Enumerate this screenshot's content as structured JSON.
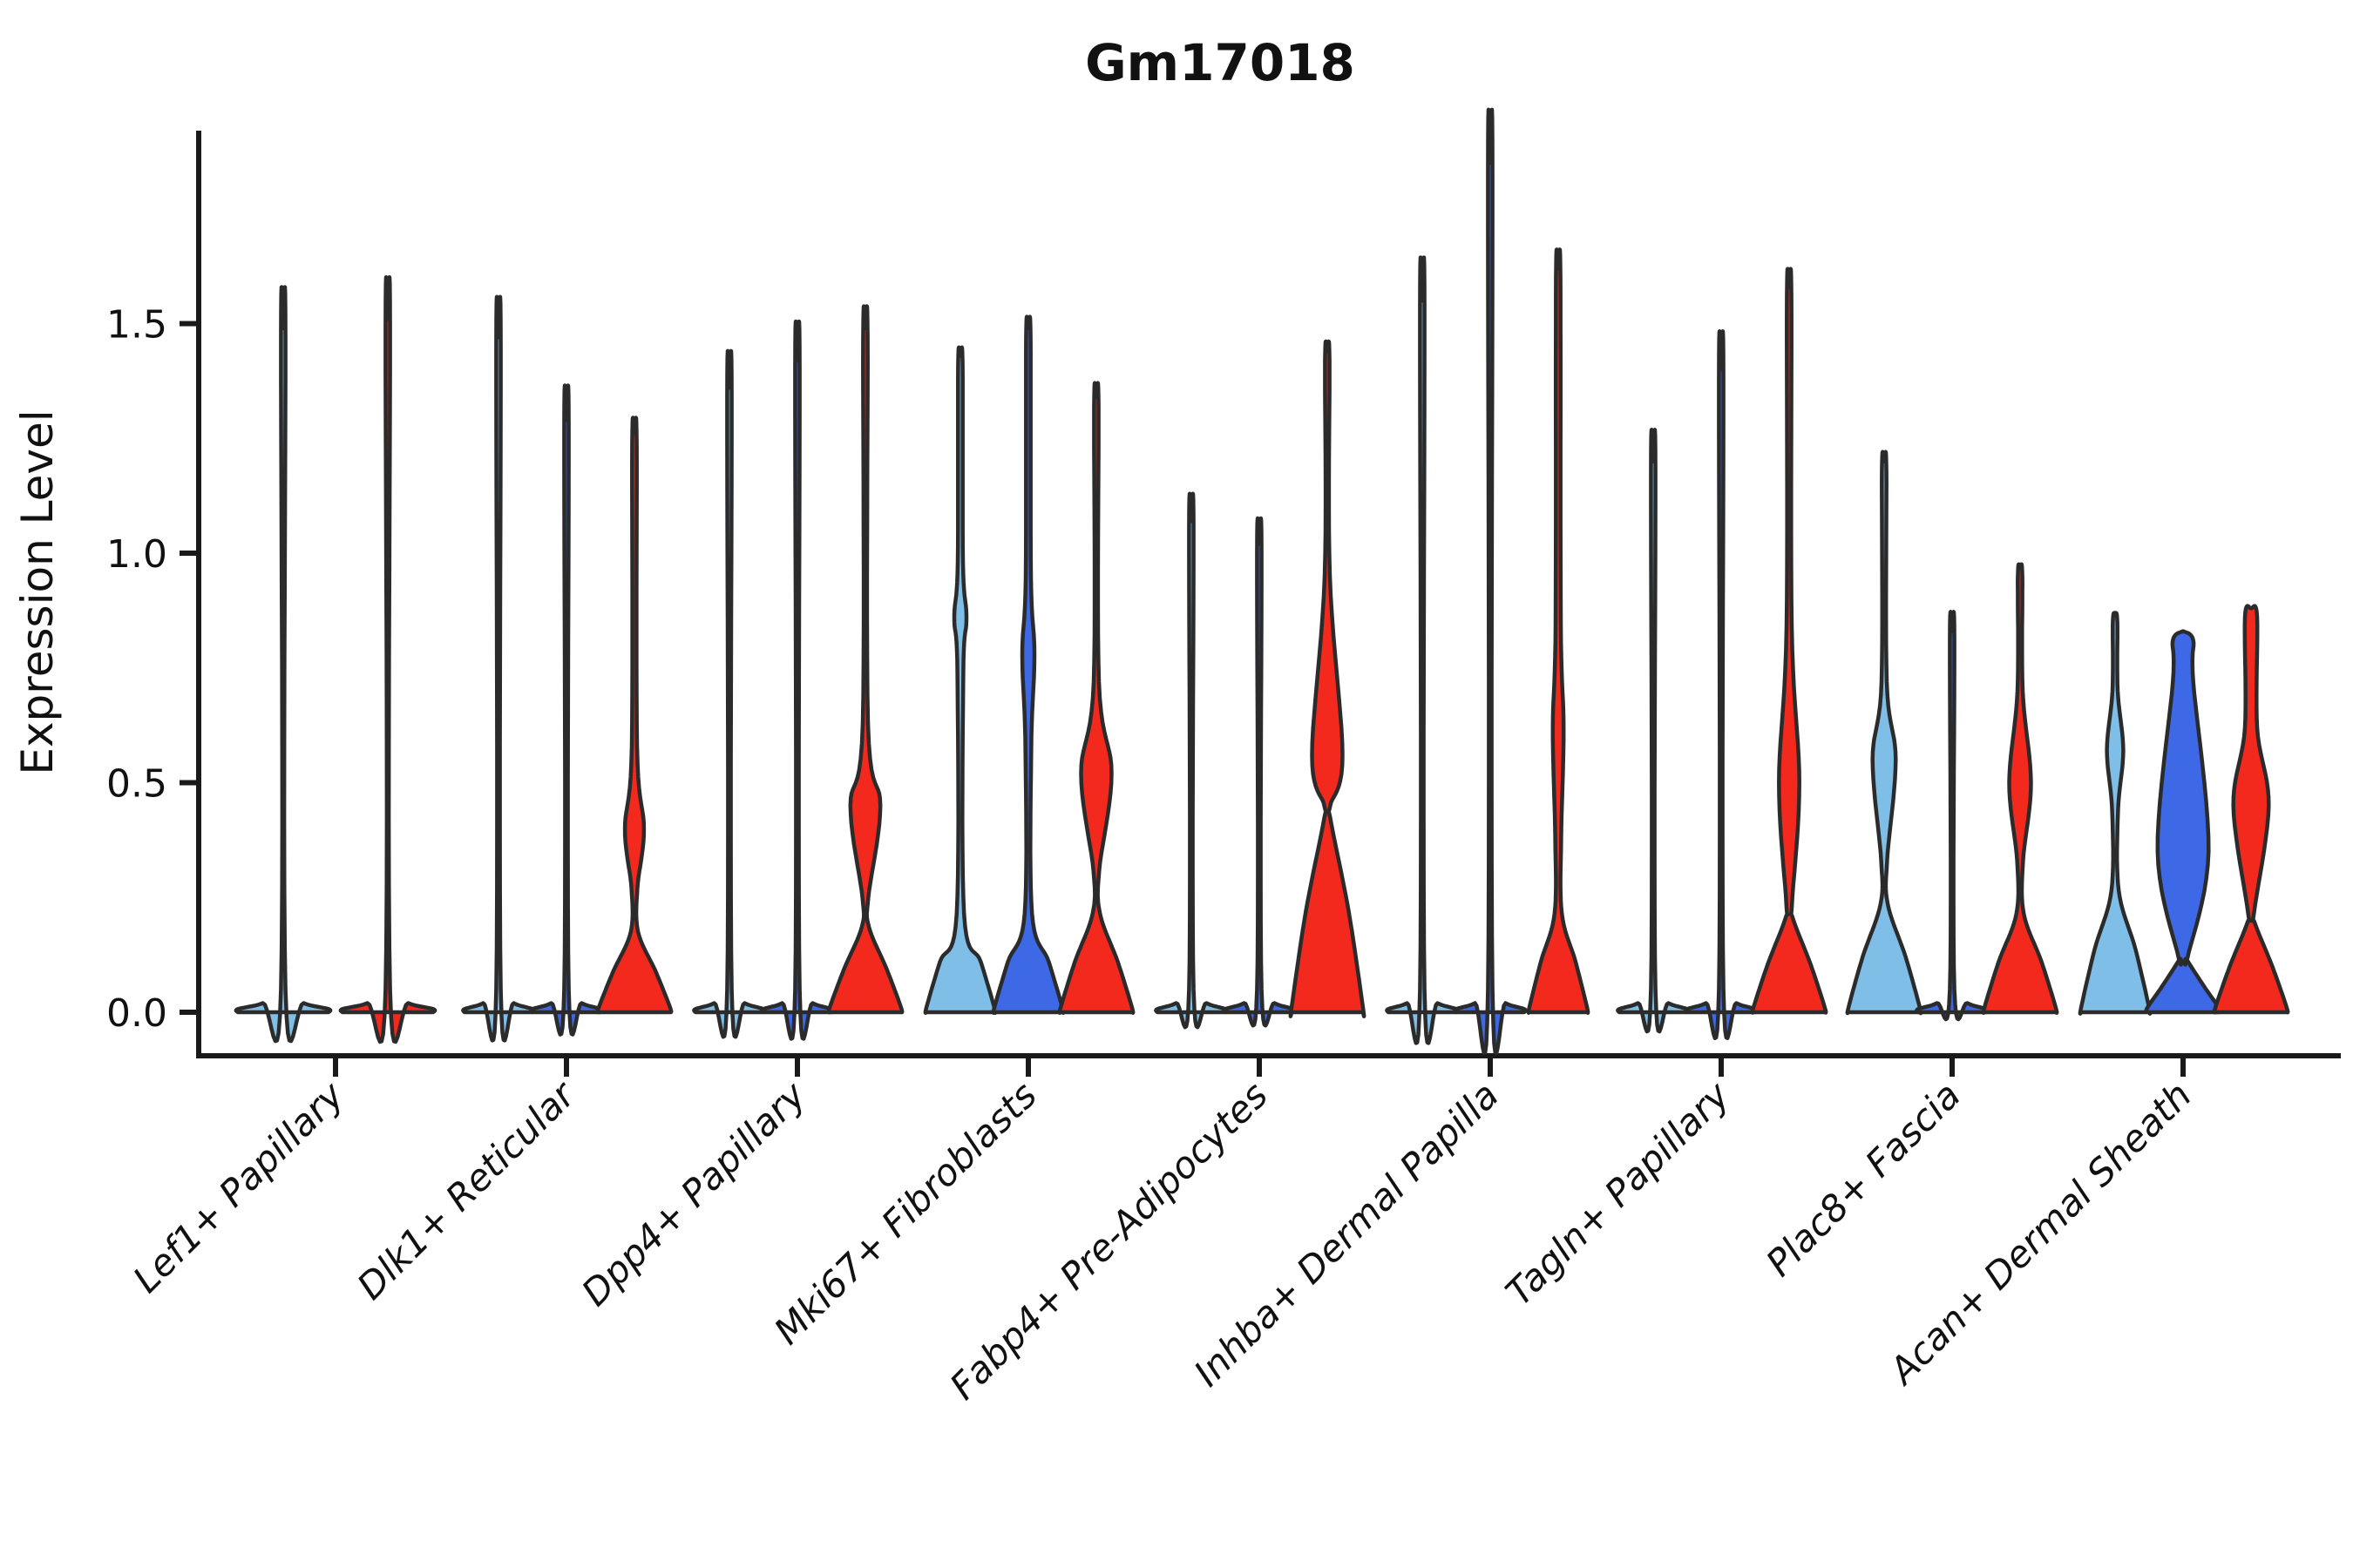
{
  "figure": {
    "title": "Gm17018",
    "y_axis_label": "Expression Level"
  },
  "chart_data": {
    "type": "violin",
    "title": "Gm17018",
    "xlabel": "",
    "ylabel": "Expression Level",
    "ylim": [
      0,
      1.92
    ],
    "y_ticks": [
      0.0,
      0.5,
      1.0,
      1.5
    ],
    "y_tick_labels": [
      "0.0",
      "0.5",
      "1.0",
      "1.5"
    ],
    "grid": false,
    "legend_position": "none",
    "x_tick_rotation_deg": 45,
    "categories": [
      "Lef1+ Papillary",
      "Dlk1+ Reticular",
      "Dpp4+ Papillary",
      "Mki67+ Fibroblasts",
      "Fabp4+ Pre-Adipocytes",
      "Inhba+ Dermal Papilla",
      "Tagln+ Papillary",
      "Plac8+ Fascia",
      "Acan+ Dermal Sheath"
    ],
    "split_colors": {
      "light_blue": "#7FBFE7",
      "dark_blue": "#3E69E6",
      "red": "#F4291D"
    },
    "outline_color": "#2B2B2B",
    "spine_color": "#1A1A1A",
    "groups": [
      {
        "category": "Lef1+ Papillary",
        "violins": [
          {
            "color": "light_blue",
            "max": 1.49,
            "bulge": null,
            "base": null
          },
          {
            "color": "red",
            "max": 1.51,
            "bulge": null,
            "base": null
          }
        ]
      },
      {
        "category": "Dlk1+ Reticular",
        "violins": [
          {
            "color": "light_blue",
            "max": 1.47,
            "bulge": null,
            "base": null
          },
          {
            "color": "dark_blue",
            "max": 1.29,
            "bulge": null,
            "base": null
          },
          {
            "color": "red",
            "max": 1.26,
            "bulge": {
              "lo": 0.27,
              "hi": 0.58,
              "peak": 0.4,
              "rel": 0.28
            },
            "base": {
              "top": 0.16,
              "rel": 1.05
            }
          }
        ]
      },
      {
        "category": "Dpp4+ Papillary",
        "violins": [
          {
            "color": "light_blue",
            "max": 1.36,
            "bulge": null,
            "base": null
          },
          {
            "color": "dark_blue",
            "max": 1.42,
            "bulge": null,
            "base": null
          },
          {
            "color": "red",
            "max": 1.49,
            "bulge": {
              "lo": 0.25,
              "hi": 0.63,
              "peak": 0.45,
              "rel": 0.44
            },
            "base": {
              "top": 0.17,
              "rel": 1.05
            }
          }
        ]
      },
      {
        "category": "Mki67+ Fibroblasts",
        "violins": [
          {
            "color": "light_blue",
            "max": 1.43,
            "bulge": {
              "lo": 0.74,
              "hi": 0.98,
              "peak": 0.86,
              "rel": 0.18
            },
            "base": {
              "top": 0.2,
              "rel": 1.0
            }
          },
          {
            "color": "dark_blue",
            "max": 1.49,
            "bulge": {
              "lo": 0.58,
              "hi": 0.95,
              "peak": 0.78,
              "rel": 0.18
            },
            "base": {
              "top": 0.2,
              "rel": 1.0
            }
          },
          {
            "color": "red",
            "max": 1.34,
            "bulge": {
              "lo": 0.31,
              "hi": 0.72,
              "peak": 0.52,
              "rel": 0.45
            },
            "base": {
              "top": 0.2,
              "rel": 1.05
            }
          }
        ]
      },
      {
        "category": "Fabp4+ Pre-Adipocytes",
        "violins": [
          {
            "color": "light_blue",
            "max": 1.07,
            "bulge": null,
            "base": null
          },
          {
            "color": "dark_blue",
            "max": 1.02,
            "bulge": null,
            "base": null
          },
          {
            "color": "red",
            "max": 1.44,
            "bulge": {
              "lo": 0.45,
              "hi": 0.95,
              "peak": 0.56,
              "rel": 0.45
            },
            "base": {
              "top": 0.4,
              "rel": 1.05
            }
          }
        ]
      },
      {
        "category": "Inhba+ Dermal Papilla",
        "violins": [
          {
            "color": "light_blue",
            "max": 1.55,
            "bulge": null,
            "base": null
          },
          {
            "color": "dark_blue",
            "max": 1.85,
            "bulge": null,
            "base": null
          },
          {
            "color": "red",
            "max": 1.62,
            "bulge": {
              "lo": 0.38,
              "hi": 0.85,
              "peak": 0.62,
              "rel": 0.16
            },
            "base": {
              "top": 0.2,
              "rel": 0.85
            }
          }
        ]
      },
      {
        "category": "Tagln+ Papillary",
        "violins": [
          {
            "color": "light_blue",
            "max": 1.2,
            "bulge": null,
            "base": null
          },
          {
            "color": "dark_blue",
            "max": 1.4,
            "bulge": null,
            "base": null
          },
          {
            "color": "red",
            "max": 1.58,
            "bulge": {
              "lo": 0.24,
              "hi": 0.84,
              "peak": 0.5,
              "rel": 0.3
            },
            "base": {
              "top": 0.19,
              "rel": 1.05
            }
          }
        ]
      },
      {
        "category": "Plac8+ Fascia",
        "violins": [
          {
            "color": "light_blue",
            "max": 1.2,
            "bulge": {
              "lo": 0.33,
              "hi": 0.72,
              "peak": 0.55,
              "rel": 0.34
            },
            "base": {
              "top": 0.22,
              "rel": 1.05
            }
          },
          {
            "color": "dark_blue",
            "max": 0.83,
            "bulge": null,
            "base": null
          },
          {
            "color": "red",
            "max": 0.97,
            "bulge": {
              "lo": 0.33,
              "hi": 0.7,
              "peak": 0.5,
              "rel": 0.32
            },
            "base": {
              "top": 0.2,
              "rel": 1.05
            }
          }
        ]
      },
      {
        "category": "Acan+ Dermal Sheath",
        "violins": [
          {
            "color": "light_blue",
            "max": 0.87,
            "bulge": {
              "lo": 0.44,
              "hi": 0.7,
              "peak": 0.57,
              "rel": 0.24
            },
            "base": {
              "top": 0.25,
              "rel": 1.0
            }
          },
          {
            "color": "dark_blue",
            "max": 0.83,
            "bulge": {
              "lo": 0.12,
              "hi": 0.72,
              "peak": 0.35,
              "rel": 0.75
            },
            "base": {
              "top": 0.1,
              "rel": 1.05
            },
            "neck": 0.3
          },
          {
            "color": "red",
            "max": 0.88,
            "bulge": {
              "lo": 0.22,
              "hi": 0.62,
              "peak": 0.45,
              "rel": 0.52
            },
            "base": {
              "top": 0.18,
              "rel": 1.05
            },
            "neck": 0.18
          }
        ]
      }
    ]
  }
}
